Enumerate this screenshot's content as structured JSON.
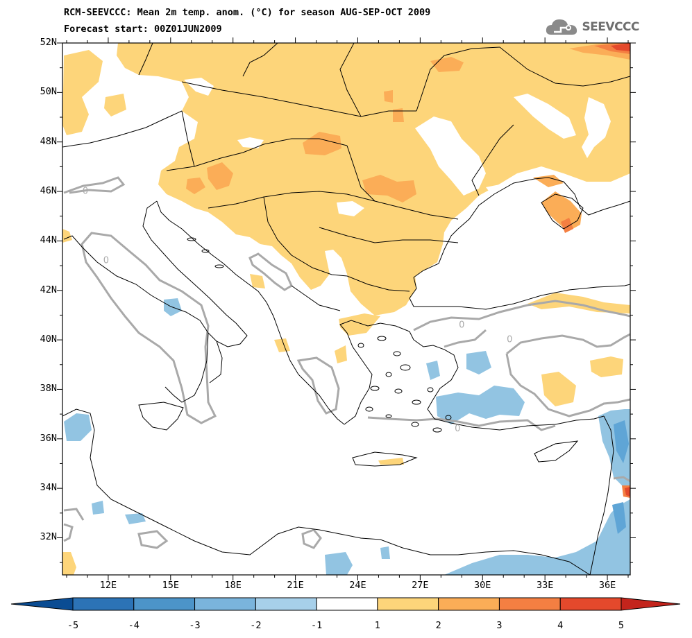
{
  "title": {
    "line1": "RCM-SEEVCCC: Mean 2m temp. anom. (°C) for season AUG-SEP-OCT 2009",
    "line2": "Forecast start: 00Z01JUN2009"
  },
  "logo": {
    "text": "SEEVCCC",
    "icon": "cloud-icon"
  },
  "map": {
    "lat_labels": [
      "52N",
      "50N",
      "48N",
      "46N",
      "44N",
      "42N",
      "40N",
      "38N",
      "36N",
      "34N",
      "32N"
    ],
    "lon_labels": [
      "12E",
      "15E",
      "18E",
      "21E",
      "24E",
      "27E",
      "30E",
      "33E",
      "36E"
    ],
    "contour_label": "0",
    "contour_labels": [
      {
        "lon": 10.9,
        "lat": 45.9
      },
      {
        "lon": 11.9,
        "lat": 43.1
      },
      {
        "lon": 29.0,
        "lat": 40.5
      },
      {
        "lon": 31.3,
        "lat": 39.9
      },
      {
        "lon": 28.8,
        "lat": 36.3
      }
    ],
    "colors": {
      "warm1": "#fdd57a",
      "warm2": "#fbad57",
      "warm3": "#f47f42",
      "warm4": "#e4492c",
      "cool1": "#92c4e2",
      "cool2": "#5fa5d6",
      "contour": "#a9a9a9",
      "border": "#000000"
    }
  },
  "colorbar": {
    "labels": [
      "-5",
      "-4",
      "-3",
      "-2",
      "-1",
      "1",
      "2",
      "3",
      "4",
      "5"
    ],
    "colors": [
      "#0a4c93",
      "#2c73b6",
      "#4c94c9",
      "#7ab4dc",
      "#a7d0ea",
      "#ffffff",
      "#fdd57a",
      "#fbad57",
      "#f47f42",
      "#e4492c",
      "#c3241c",
      "#e4492c"
    ]
  }
}
